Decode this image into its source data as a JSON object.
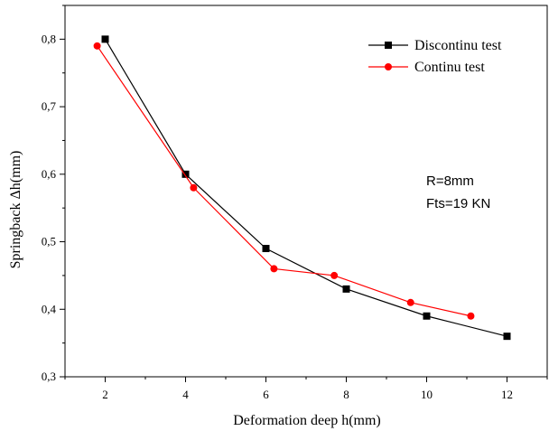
{
  "chart_data": {
    "type": "line",
    "xlabel": "Deformation deep h(mm)",
    "ylabel": "Springback Δh(mm)",
    "xlim": [
      1,
      13
    ],
    "ylim": [
      0.3,
      0.85
    ],
    "x_ticks": [
      2,
      4,
      6,
      8,
      10,
      12
    ],
    "x_tick_labels": [
      "2",
      "4",
      "6",
      "8",
      "10",
      "12"
    ],
    "y_ticks": [
      0.3,
      0.4,
      0.5,
      0.6,
      0.7,
      0.8
    ],
    "y_tick_labels": [
      "0,3",
      "0,4",
      "0,5",
      "0,6",
      "0,7",
      "0,8"
    ],
    "grid": false,
    "legend_position": "top-right",
    "series": [
      {
        "name": "Discontinu test",
        "color": "#000000",
        "marker": "square",
        "x": [
          2,
          4,
          6,
          8,
          10,
          12
        ],
        "y": [
          0.8,
          0.6,
          0.49,
          0.43,
          0.39,
          0.36
        ]
      },
      {
        "name": "Continu test",
        "color": "#ff0000",
        "marker": "circle",
        "x": [
          1.8,
          4.2,
          6.2,
          7.7,
          9.6,
          11.1
        ],
        "y": [
          0.79,
          0.58,
          0.46,
          0.45,
          0.41,
          0.39
        ]
      }
    ],
    "annotations": [
      "R=8mm",
      "Fts=19 KN"
    ]
  }
}
